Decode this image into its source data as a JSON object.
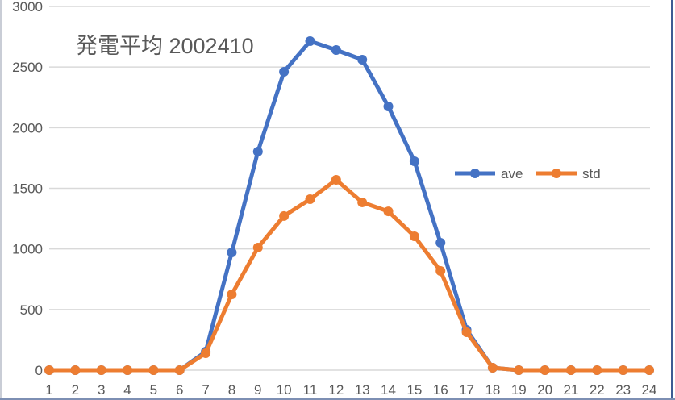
{
  "chart_data": {
    "type": "line",
    "title": "発電平均 2002410",
    "xlabel": "",
    "ylabel": "",
    "x": [
      1,
      2,
      3,
      4,
      5,
      6,
      7,
      8,
      9,
      10,
      11,
      12,
      13,
      14,
      15,
      16,
      17,
      18,
      19,
      20,
      21,
      22,
      23,
      24
    ],
    "categories": [
      "1",
      "2",
      "3",
      "4",
      "5",
      "6",
      "7",
      "8",
      "9",
      "10",
      "11",
      "12",
      "13",
      "14",
      "15",
      "16",
      "17",
      "18",
      "19",
      "20",
      "21",
      "22",
      "23",
      "24"
    ],
    "series": [
      {
        "name": "ave",
        "color": "#4472c4",
        "values": [
          0,
          0,
          0,
          0,
          0,
          0,
          153,
          971,
          1803,
          2461,
          2714,
          2641,
          2561,
          2175,
          1723,
          1051,
          333,
          20,
          0,
          0,
          0,
          0,
          0,
          0
        ]
      },
      {
        "name": "std",
        "color": "#ed7d31",
        "values": [
          0,
          0,
          0,
          0,
          0,
          0,
          140,
          625,
          1011,
          1271,
          1410,
          1570,
          1384,
          1310,
          1104,
          818,
          313,
          20,
          0,
          0,
          0,
          0,
          0,
          0
        ]
      }
    ],
    "ylim": [
      0,
      3000
    ],
    "yticks": [
      0,
      500,
      1000,
      1500,
      2000,
      2500,
      3000
    ],
    "grid": true,
    "legend_position": "right-middle (inside plot)"
  },
  "colors": {
    "gridline": "#d9d9d9",
    "text": "#595959"
  }
}
